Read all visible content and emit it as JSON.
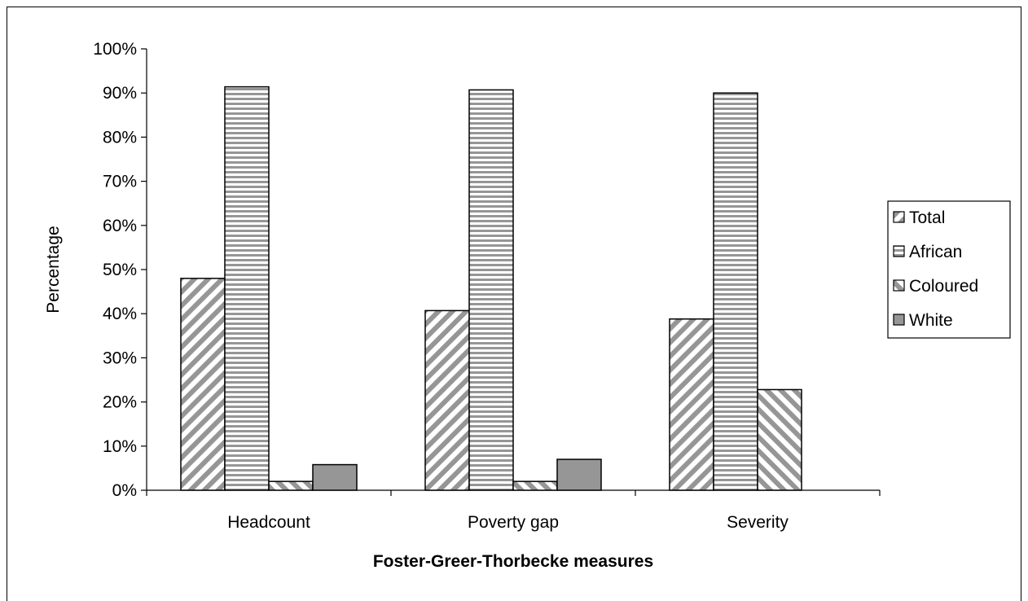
{
  "chart_data": {
    "type": "bar",
    "xlabel": "Foster-Greer-Thorbecke measures",
    "ylabel": "Percentage",
    "ylim": [
      0,
      100
    ],
    "yticks": [
      0,
      10,
      20,
      30,
      40,
      50,
      60,
      70,
      80,
      90,
      100
    ],
    "tick_suffix": "%",
    "grid": false,
    "legend_position": "right",
    "categories": [
      "Headcount",
      "Poverty gap",
      "Severity"
    ],
    "series": [
      {
        "name": "Total",
        "values": [
          48,
          40.7,
          38.8
        ],
        "pattern": "diag-up",
        "fill": "#ffffff",
        "stroke": "#969696"
      },
      {
        "name": "African",
        "values": [
          91.4,
          90.7,
          90
        ],
        "pattern": "horizontal",
        "fill": "#ffffff",
        "stroke": "#969696"
      },
      {
        "name": "Coloured",
        "values": [
          2,
          2,
          22.8
        ],
        "pattern": "diag-down",
        "fill": "#ffffff",
        "stroke": "#969696"
      },
      {
        "name": "White",
        "values": [
          5.8,
          7,
          null
        ],
        "pattern": "solid",
        "fill": "#969696",
        "stroke": "#969696"
      }
    ]
  }
}
